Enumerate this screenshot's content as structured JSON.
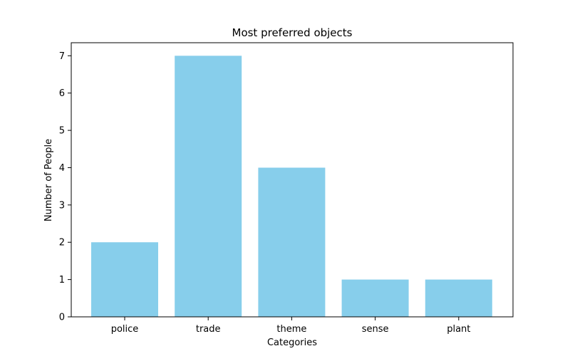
{
  "chart_data": {
    "type": "bar",
    "title": "Most preferred objects",
    "xlabel": "Categories",
    "ylabel": "Number of People",
    "categories": [
      "police",
      "trade",
      "theme",
      "sense",
      "plant"
    ],
    "values": [
      2,
      7,
      4,
      1,
      1
    ],
    "ylim": [
      0,
      7.35
    ],
    "yticks": [
      0,
      1,
      2,
      3,
      4,
      5,
      6,
      7
    ],
    "grid": false,
    "bar_color": "#87ceeb",
    "axis_color": "#000000"
  }
}
